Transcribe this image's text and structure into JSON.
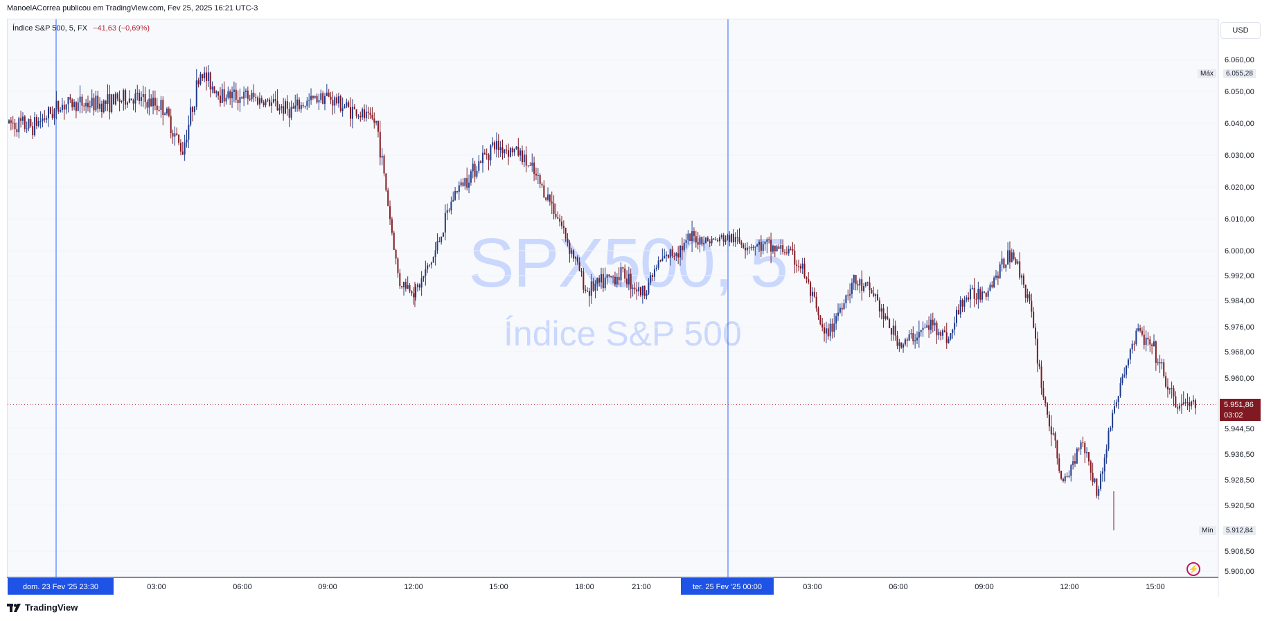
{
  "header": {
    "publish_line": "ManoelACorrea publicou em TradingView.com, Fev 25, 2025 16:21 UTC-3"
  },
  "symbol_bar": {
    "title": "Índice S&P 500, 5, FX",
    "change": "−41,63 (−0,69%)"
  },
  "watermark": {
    "ticker": "SPX500, 5",
    "name": "Índice S&P 500"
  },
  "currency_button": "USD",
  "price_axis": {
    "labels": [
      "6.060,00",
      "6.050,00",
      "6.040,00",
      "6.030,00",
      "6.020,00",
      "6.010,00",
      "6.000,00",
      "5.992,00",
      "5.984,00",
      "5.976,00",
      "5.968,00",
      "5.960,00",
      "5.944,50",
      "5.936,50",
      "5.928,50",
      "5.920,50",
      "5.906,50",
      "5.900,00"
    ],
    "max_label": "Máx",
    "max_value": "6.055,28",
    "min_label": "Mín",
    "min_value": "5.912,84",
    "last_value": "5.951,86",
    "countdown": "03:02"
  },
  "time_axis": {
    "ticks": [
      "03:00",
      "06:00",
      "09:00",
      "12:00",
      "15:00",
      "18:00",
      "21:00",
      "03:00",
      "06:00",
      "09:00",
      "12:00",
      "15:00"
    ],
    "session_labels": [
      "dom. 23 Fev '25   23:30",
      "ter. 25 Fev '25   00:00"
    ]
  },
  "footer": {
    "brand": "TradingView"
  },
  "colors": {
    "up": "#1e3a8a",
    "down": "#801922",
    "session_line": "#2962ff",
    "last_line": "#b22833",
    "background": "#f8f9fd"
  },
  "chart_data": {
    "type": "candlestick",
    "title": "Índice S&P 500, 5, FX",
    "interval": "5",
    "ylim": [
      5900,
      6060
    ],
    "path": [
      [
        "dom. 23 Fev '25 23:30",
        6040
      ],
      [
        "00:30",
        6039
      ],
      [
        "01:30",
        6046
      ],
      [
        "03:00",
        6046
      ],
      [
        "04:30",
        6048
      ],
      [
        "05:00",
        6045
      ],
      [
        "05:40",
        6031
      ],
      [
        "06:15",
        6056
      ],
      [
        "07:30",
        6049
      ],
      [
        "09:00",
        6048
      ],
      [
        "10:30",
        6044
      ],
      [
        "11:30",
        6049
      ],
      [
        "11:50",
        6040
      ],
      [
        "12:10",
        5990
      ],
      [
        "12:40",
        5987
      ],
      [
        "13:20",
        5998
      ],
      [
        "14:00",
        6018
      ],
      [
        "15:00",
        6033
      ],
      [
        "15:45",
        6031
      ],
      [
        "16:30",
        6024
      ],
      [
        "17:20",
        6013
      ],
      [
        "18:00",
        5994
      ],
      [
        "18:20",
        5987
      ],
      [
        "19:30",
        5993
      ],
      [
        "20:30",
        5986
      ],
      [
        "21:20",
        5996
      ],
      [
        "22:30",
        6004
      ],
      [
        "23:00",
        6003
      ],
      [
        "ter. 25 Fev '25 00:00",
        6004
      ],
      [
        "01:00",
        6002
      ],
      [
        "02:00",
        6001
      ],
      [
        "03:00",
        6000
      ],
      [
        "04:00",
        5994
      ],
      [
        "05:00",
        5972
      ],
      [
        "05:30",
        5990
      ],
      [
        "06:00",
        5986
      ],
      [
        "07:00",
        5980
      ],
      [
        "07:40",
        5970
      ],
      [
        "08:30",
        5977
      ],
      [
        "09:00",
        5972
      ],
      [
        "09:30",
        5984
      ],
      [
        "10:00",
        5988
      ],
      [
        "11:30",
        6000
      ],
      [
        "12:00",
        5985
      ],
      [
        "12:30",
        5955
      ],
      [
        "13:00",
        5926
      ],
      [
        "13:30",
        5942
      ],
      [
        "14:00",
        5924
      ],
      [
        "14:30",
        5948
      ],
      [
        "15:00",
        5975
      ],
      [
        "15:30",
        5968
      ],
      [
        "16:00",
        5951.86
      ]
    ],
    "max": 6055.28,
    "min": 5912.84,
    "last": 5951.86,
    "change": -41.63,
    "change_percent": -0.69
  }
}
